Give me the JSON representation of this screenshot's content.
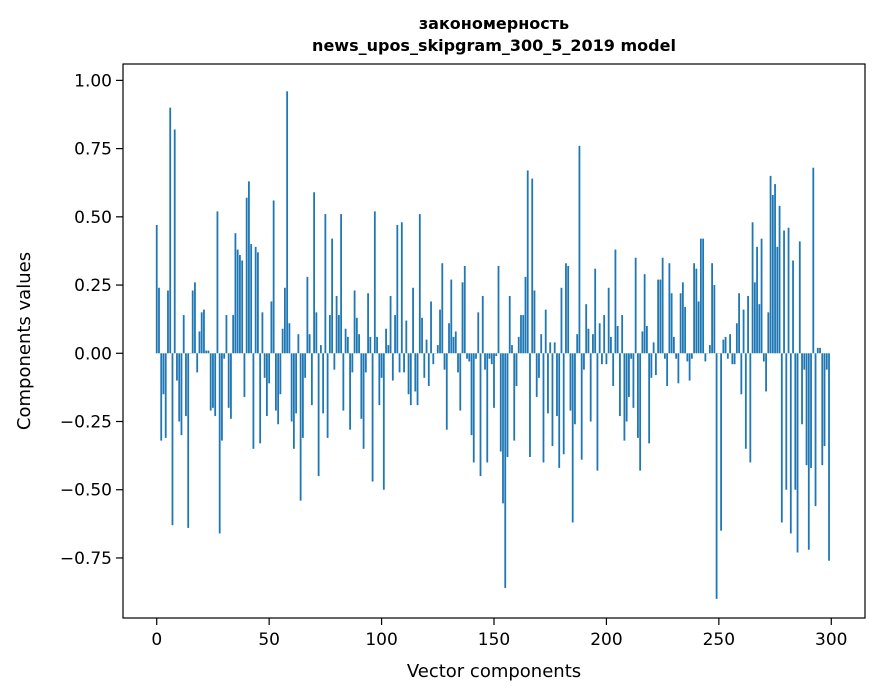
{
  "chart_data": {
    "type": "bar",
    "title_line1": "закономерность",
    "title_line2": "news_upos_skipgram_300_5_2019 model",
    "xlabel": "Vector components",
    "ylabel": "Components values",
    "xlim": [
      -15,
      315
    ],
    "ylim": [
      -0.97,
      1.06
    ],
    "xticks": [
      0,
      50,
      100,
      150,
      200,
      250,
      300
    ],
    "xtick_labels": [
      "0",
      "50",
      "100",
      "150",
      "200",
      "250",
      "300"
    ],
    "yticks": [
      1.0,
      0.75,
      0.5,
      0.25,
      0.0,
      -0.25,
      -0.5,
      -0.75
    ],
    "ytick_labels": [
      "1.00",
      "0.75",
      "0.50",
      "0.25",
      "0.00",
      "−0.25",
      "−0.50",
      "−0.75"
    ],
    "bar_color": "#1f77b4",
    "values": [
      0.47,
      0.24,
      -0.32,
      -0.15,
      -0.31,
      0.23,
      0.9,
      -0.63,
      0.82,
      -0.1,
      -0.25,
      -0.3,
      0.14,
      -0.23,
      -0.64,
      0.0,
      0.23,
      0.26,
      -0.07,
      0.08,
      0.15,
      0.16,
      0.01,
      0.01,
      -0.21,
      -0.2,
      -0.23,
      0.52,
      -0.66,
      -0.32,
      -0.02,
      0.14,
      -0.2,
      -0.24,
      0.14,
      0.44,
      0.38,
      0.36,
      0.34,
      -0.16,
      0.57,
      0.63,
      0.4,
      -0.35,
      0.39,
      0.37,
      -0.33,
      0.15,
      -0.09,
      -0.23,
      -0.11,
      0.19,
      0.56,
      -0.21,
      -0.26,
      -0.15,
      0.09,
      0.24,
      0.96,
      0.11,
      -0.25,
      -0.35,
      -0.22,
      0.07,
      -0.54,
      -0.31,
      -0.09,
      0.28,
      0.07,
      -0.19,
      0.59,
      0.15,
      -0.45,
      0.03,
      -0.22,
      0.51,
      -0.31,
      0.14,
      0.42,
      -0.06,
      0.21,
      0.14,
      0.51,
      -0.21,
      0.09,
      0.06,
      -0.28,
      -0.07,
      0.23,
      0.13,
      0.07,
      -0.24,
      -0.35,
      -0.07,
      0.22,
      0.06,
      -0.47,
      0.52,
      0.06,
      -0.19,
      -0.09,
      -0.5,
      0.09,
      0.03,
      0.21,
      -0.1,
      0.14,
      0.47,
      -0.07,
      0.48,
      -0.07,
      0.12,
      -0.15,
      -0.19,
      0.24,
      -0.14,
      -0.19,
      0.51,
      0.13,
      -0.09,
      0.05,
      -0.12,
      0.19,
      -0.04,
      0.0,
      0.03,
      0.16,
      0.33,
      -0.06,
      -0.28,
      0.11,
      0.27,
      0.06,
      0.08,
      -0.07,
      -0.21,
      0.26,
      0.32,
      -0.02,
      -0.03,
      -0.3,
      -0.4,
      -0.02,
      0.15,
      -0.45,
      0.21,
      -0.06,
      -0.4,
      -0.02,
      -0.04,
      -0.2,
      -0.01,
      0.32,
      -0.36,
      -0.55,
      -0.86,
      -0.38,
      0.21,
      0.03,
      -0.32,
      -0.12,
      0.06,
      0.14,
      0.14,
      0.28,
      0.67,
      -0.38,
      0.64,
      0.23,
      -0.16,
      -0.09,
      0.07,
      -0.4,
      0.16,
      -0.22,
      0.04,
      -0.34,
      0.04,
      -0.23,
      -0.42,
      0.24,
      -0.37,
      0.33,
      0.32,
      -0.21,
      -0.62,
      -0.26,
      0.07,
      0.76,
      -0.39,
      -0.06,
      0.18,
      0.09,
      -0.25,
      0.07,
      0.31,
      -0.43,
      0.11,
      -0.04,
      0.14,
      -0.04,
      0.24,
      0.06,
      -0.12,
      0.38,
      0.1,
      -0.23,
      0.14,
      -0.32,
      -0.25,
      -0.16,
      -0.02,
      -0.2,
      0.35,
      -0.31,
      -0.43,
      0.08,
      0.29,
      0.1,
      -0.33,
      -0.09,
      0.04,
      -0.08,
      0.27,
      0.27,
      0.35,
      -0.02,
      -0.12,
      0.33,
      0.22,
      0.06,
      -0.02,
      -0.11,
      0.22,
      0.26,
      0.17,
      -0.03,
      -0.1,
      -0.02,
      0.33,
      0.31,
      0.19,
      0.42,
      0.42,
      -0.03,
      0.0,
      0.03,
      0.33,
      0.25,
      -0.9,
      0.0,
      -0.65,
      0.05,
      0.06,
      -0.02,
      0.07,
      -0.04,
      -0.04,
      0.11,
      0.22,
      -0.15,
      0.16,
      -0.35,
      0.21,
      -0.4,
      0.48,
      0.26,
      0.39,
      0.18,
      0.42,
      -0.03,
      -0.14,
      0.15,
      0.65,
      0.58,
      0.62,
      0.39,
      0.54,
      -0.62,
      0.45,
      -0.5,
      0.46,
      -0.66,
      0.34,
      -0.5,
      -0.73,
      0.41,
      -0.26,
      -0.06,
      -0.41,
      -0.72,
      -0.42,
      0.68,
      -0.56,
      0.02,
      0.02,
      -0.41,
      -0.34,
      -0.06,
      -0.76
    ]
  }
}
